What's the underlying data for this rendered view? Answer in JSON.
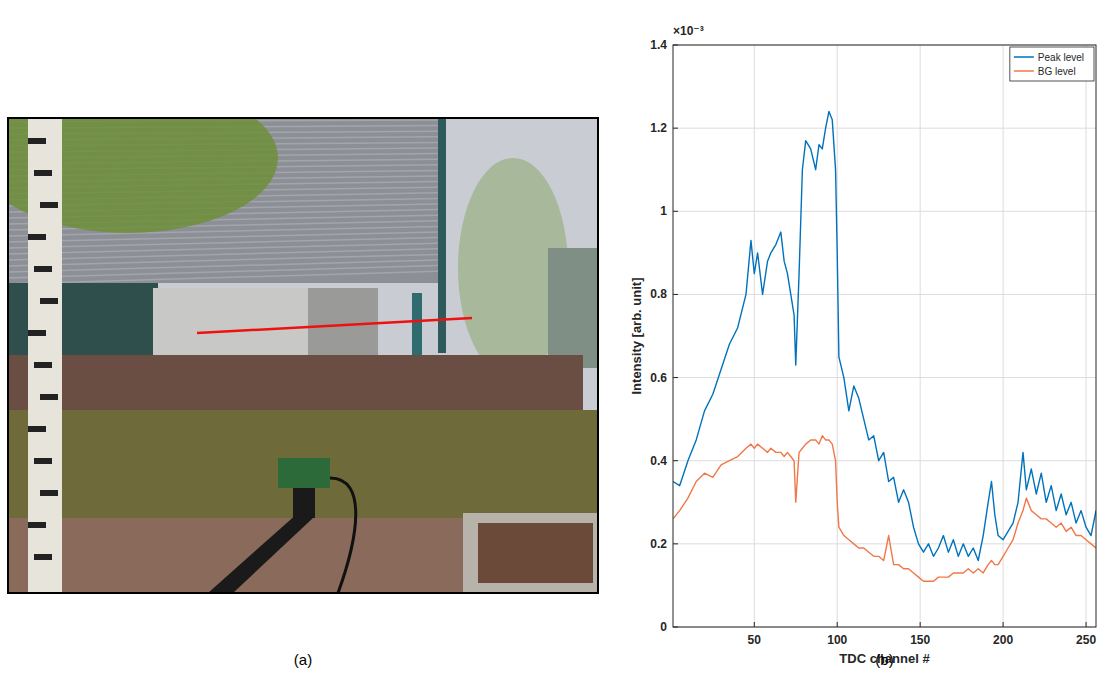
{
  "chart_data": {
    "type": "line",
    "xlabel": "TDC channel #",
    "ylabel": "Intensity [arb. unit]",
    "annotations": [
      "×10⁻³"
    ],
    "x": [
      1,
      5,
      10,
      15,
      20,
      25,
      30,
      35,
      40,
      45,
      48,
      50,
      52,
      55,
      58,
      60,
      63,
      66,
      68,
      70,
      72,
      74,
      75,
      77,
      79,
      81,
      84,
      87,
      89,
      91,
      93,
      95,
      97,
      99,
      100,
      101,
      104,
      107,
      110,
      113,
      116,
      119,
      122,
      125,
      128,
      131,
      134,
      137,
      140,
      143,
      146,
      149,
      152,
      155,
      158,
      161,
      164,
      167,
      170,
      173,
      176,
      179,
      182,
      185,
      188,
      191,
      193,
      195,
      197,
      200,
      203,
      206,
      209,
      212,
      214,
      217,
      220,
      223,
      226,
      229,
      232,
      235,
      238,
      241,
      244,
      247,
      250,
      253,
      256
    ],
    "series": [
      {
        "name": "Peak level",
        "color": "#0072bd",
        "values": [
          0.35,
          0.34,
          0.4,
          0.45,
          0.52,
          0.56,
          0.62,
          0.68,
          0.72,
          0.8,
          0.93,
          0.85,
          0.9,
          0.8,
          0.88,
          0.9,
          0.92,
          0.95,
          0.88,
          0.85,
          0.8,
          0.75,
          0.63,
          0.85,
          1.1,
          1.17,
          1.15,
          1.1,
          1.16,
          1.15,
          1.2,
          1.24,
          1.22,
          1.1,
          0.9,
          0.65,
          0.6,
          0.52,
          0.58,
          0.55,
          0.5,
          0.45,
          0.46,
          0.4,
          0.42,
          0.35,
          0.36,
          0.3,
          0.33,
          0.3,
          0.24,
          0.2,
          0.18,
          0.2,
          0.17,
          0.19,
          0.22,
          0.18,
          0.21,
          0.17,
          0.2,
          0.17,
          0.19,
          0.16,
          0.22,
          0.3,
          0.35,
          0.27,
          0.22,
          0.21,
          0.23,
          0.25,
          0.3,
          0.42,
          0.33,
          0.38,
          0.32,
          0.37,
          0.3,
          0.34,
          0.28,
          0.32,
          0.27,
          0.3,
          0.25,
          0.28,
          0.24,
          0.22,
          0.28
        ]
      },
      {
        "name": "BG level",
        "color": "#f07848",
        "values": [
          0.26,
          0.28,
          0.31,
          0.35,
          0.37,
          0.36,
          0.39,
          0.4,
          0.41,
          0.43,
          0.44,
          0.43,
          0.44,
          0.43,
          0.42,
          0.43,
          0.42,
          0.42,
          0.41,
          0.42,
          0.41,
          0.4,
          0.3,
          0.42,
          0.43,
          0.44,
          0.45,
          0.45,
          0.44,
          0.46,
          0.45,
          0.45,
          0.44,
          0.4,
          0.3,
          0.24,
          0.22,
          0.21,
          0.2,
          0.19,
          0.19,
          0.18,
          0.17,
          0.17,
          0.16,
          0.22,
          0.15,
          0.15,
          0.14,
          0.14,
          0.13,
          0.12,
          0.11,
          0.11,
          0.11,
          0.12,
          0.12,
          0.12,
          0.13,
          0.13,
          0.13,
          0.14,
          0.13,
          0.14,
          0.13,
          0.15,
          0.16,
          0.15,
          0.15,
          0.17,
          0.19,
          0.21,
          0.25,
          0.28,
          0.31,
          0.28,
          0.27,
          0.26,
          0.26,
          0.25,
          0.24,
          0.25,
          0.23,
          0.24,
          0.22,
          0.22,
          0.21,
          0.2,
          0.19
        ]
      }
    ],
    "xlim": [
      1,
      256
    ],
    "xticks": [
      50,
      100,
      150,
      200,
      250
    ],
    "ylim": [
      0,
      1.4
    ],
    "yticks": [
      0,
      0.2,
      0.4,
      0.6,
      0.8,
      1,
      1.2,
      1.4
    ],
    "grid": true,
    "legend": "top-right"
  },
  "panel_labels": [
    "(a)",
    "(b)"
  ]
}
